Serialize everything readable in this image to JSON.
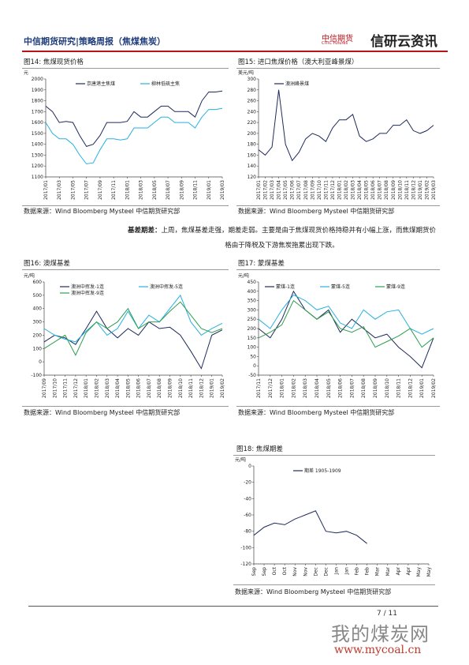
{
  "header": {
    "title": "中信期货研究|策略周报（焦煤焦炭）",
    "logo": "中信期货",
    "logo_en": "CITIC Futures",
    "brand": "信研云资讯"
  },
  "figures": [
    {
      "title": "图14: 焦煤现货价格",
      "source": "数据来源：Wind Bloomberg Mysteel 中信期货研究部",
      "chart": {
        "type": "line",
        "y_label": "元",
        "categories": [
          "2017/01",
          null,
          "2017/03",
          null,
          "2017/05",
          null,
          "2017/07",
          null,
          "2017/09",
          null,
          "2017/11",
          null,
          "2018/01",
          null,
          "2018/03",
          null,
          "2018/05",
          null,
          "2018/07",
          null,
          "2018/09",
          null,
          "2018/11",
          null,
          "2019/01",
          null,
          "2019/03"
        ],
        "series": [
          {
            "name": "京唐港主焦煤",
            "color": "#1f2a5c",
            "values": [
              1750,
              1700,
              1600,
              1610,
              1600,
              1480,
              1380,
              1400,
              1480,
              1600,
              1600,
              1600,
              1610,
              1700,
              1650,
              1650,
              1700,
              1750,
              1750,
              1700,
              1700,
              1700,
              1650,
              1800,
              1880,
              1880,
              1890
            ]
          },
          {
            "name": "柳林低硫主焦",
            "color": "#27b1e0",
            "values": [
              1600,
              1500,
              1450,
              1450,
              1400,
              1300,
              1220,
              1230,
              1350,
              1450,
              1450,
              1440,
              1450,
              1550,
              1550,
              1550,
              1600,
              1650,
              1650,
              1600,
              1600,
              1600,
              1550,
              1650,
              1720,
              1720,
              1730
            ]
          }
        ],
        "ylim": [
          1100,
          2000
        ],
        "yticks": [
          1100,
          1200,
          1300,
          1400,
          1500,
          1600,
          1700,
          1800,
          1900,
          2000
        ]
      }
    },
    {
      "title": "图15: 进口焦煤价格（澳大利亚峰景煤）",
      "source": "数据来源：Wind Bloomberg Mysteel 中信期货研究部",
      "chart": {
        "type": "line",
        "y_label": "美元/吨",
        "categories": [
          "2017/01",
          "2017/02",
          "2017/03",
          "2017/04",
          "2017/05",
          "2017/06",
          "2017/07",
          "2017/08",
          "2017/09",
          "2017/10",
          "2017/11",
          "2017/12",
          "2018/01",
          "2018/02",
          "2018/03",
          "2018/04",
          "2018/05",
          "2018/06",
          "2018/07",
          "2018/08",
          "2018/09",
          "2018/10",
          "2018/11",
          "2018/12",
          "2019/01",
          "2019/02",
          "2019/03"
        ],
        "series": [
          {
            "name": "澳洲峰景煤",
            "color": "#1f2a5c",
            "values": [
              170,
              160,
              175,
              280,
              180,
              150,
              165,
              190,
              200,
              195,
              185,
              210,
              225,
              225,
              235,
              195,
              185,
              190,
              200,
              200,
              215,
              215,
              225,
              205,
              200,
              205,
              215
            ]
          }
        ],
        "ylim": [
          120,
          300
        ],
        "yticks": [
          120,
          140,
          160,
          180,
          200,
          220,
          240,
          260,
          280,
          300
        ]
      }
    },
    {
      "title": "图16: 澳煤基差",
      "source": "数据来源：Wind Bloomberg Mysteel 中信期货研究部",
      "chart": {
        "type": "line",
        "y_label": "元/吨",
        "categories": [
          "2017/09",
          "2017/10",
          "2017/11",
          "2017/12",
          "2018/01",
          "2018/02",
          "2018/03",
          "2018/04",
          "2018/05",
          "2018/06",
          "2018/07",
          "2018/08",
          "2018/09",
          "2018/10",
          "2018/11",
          "2018/12",
          "2019/01",
          "2019/02"
        ],
        "series": [
          {
            "name": "澳洲中挥发-1连",
            "color": "#1f2a5c",
            "values": [
              150,
              200,
              180,
              130,
              250,
              380,
              250,
              180,
              250,
              200,
              300,
              250,
              260,
              200,
              80,
              -50,
              200,
              240
            ]
          },
          {
            "name": "澳洲中挥发-5连",
            "color": "#27b1e0",
            "values": [
              250,
              200,
              170,
              150,
              230,
              300,
              200,
              250,
              380,
              250,
              350,
              300,
              400,
              500,
              300,
              200,
              250,
              290
            ]
          },
          {
            "name": "澳洲中挥发-9连",
            "color": "#2e9e4f",
            "values": [
              100,
              150,
              200,
              50,
              220,
              300,
              250,
              300,
              400,
              250,
              300,
              300,
              380,
              450,
              350,
              250,
              220,
              250
            ]
          }
        ],
        "ylim": [
          -100,
          600
        ],
        "yticks": [
          -100,
          0,
          100,
          200,
          300,
          400,
          500,
          600
        ]
      }
    },
    {
      "title": "图17: 蒙煤基差",
      "source": "数据来源：Wind Bloomberg Mysteel 中信期货研究部",
      "chart": {
        "type": "line",
        "y_label": "元/吨",
        "categories": [
          "2017/11",
          "2017/12",
          "2018/01",
          "2018/02",
          "2018/03",
          "2018/04",
          "2018/05",
          "2018/06",
          "2018/07",
          "2018/08",
          "2018/09",
          "2018/10",
          "2018/11",
          "2018/12",
          "2019/01",
          "2019/02"
        ],
        "series": [
          {
            "name": "蒙煤-1连",
            "color": "#1f2a5c",
            "values": [
              200,
              150,
              250,
              400,
              300,
              250,
              300,
              180,
              250,
              200,
              150,
              170,
              100,
              50,
              -10,
              150
            ]
          },
          {
            "name": "蒙煤-5连",
            "color": "#27b1e0",
            "values": [
              250,
              200,
              300,
              380,
              350,
              300,
              320,
              230,
              200,
              300,
              250,
              290,
              300,
              200,
              170,
              200
            ]
          },
          {
            "name": "蒙煤-9连",
            "color": "#2e9e4f",
            "values": [
              150,
              180,
              220,
              350,
              300,
              250,
              290,
              200,
              180,
              210,
              100,
              130,
              160,
              200,
              100,
              150
            ]
          }
        ],
        "ylim": [
          -50,
          450
        ],
        "yticks": [
          -50,
          0,
          50,
          100,
          150,
          200,
          250,
          300,
          350,
          400,
          450
        ]
      }
    },
    {
      "title": "图18: 焦煤期差",
      "source": "数据来源：Wind Bloomberg Mysteel 中信期货研究部",
      "chart": {
        "type": "line",
        "y_label": "元/吨",
        "categories": [
          "Sep",
          "Sep",
          "Oct",
          "Oct",
          "Nov",
          "Nov",
          "Dec",
          "Dec",
          "Jan",
          "Jan",
          "Feb",
          "Feb",
          "Mar",
          "Mar",
          "Apr",
          "Apr",
          "May",
          "May"
        ],
        "series": [
          {
            "name": "期差 1905-1909",
            "color": "#1f2a5c",
            "values": [
              -85,
              -75,
              -70,
              -72,
              -65,
              -60,
              -55,
              -80,
              -82,
              -80,
              -85,
              -95,
              null,
              null,
              null,
              null,
              null,
              null
            ]
          }
        ],
        "ylim": [
          -120,
          0
        ],
        "yticks": [
          -120,
          -100,
          -80,
          -60,
          -40,
          -20,
          0
        ]
      }
    }
  ],
  "paragraph": {
    "lead": "基差期差：",
    "body": "上周，焦煤基差走强，期差走弱。主要是由于焦煤现货价格持稳并有小幅上涨，而焦煤期货价格由于降税及下游焦炭拖累出现下跌。"
  },
  "footer": {
    "page": "7 / 11"
  },
  "watermark": {
    "name": "我的煤炭网",
    "url": "www.mycoal.cn"
  }
}
